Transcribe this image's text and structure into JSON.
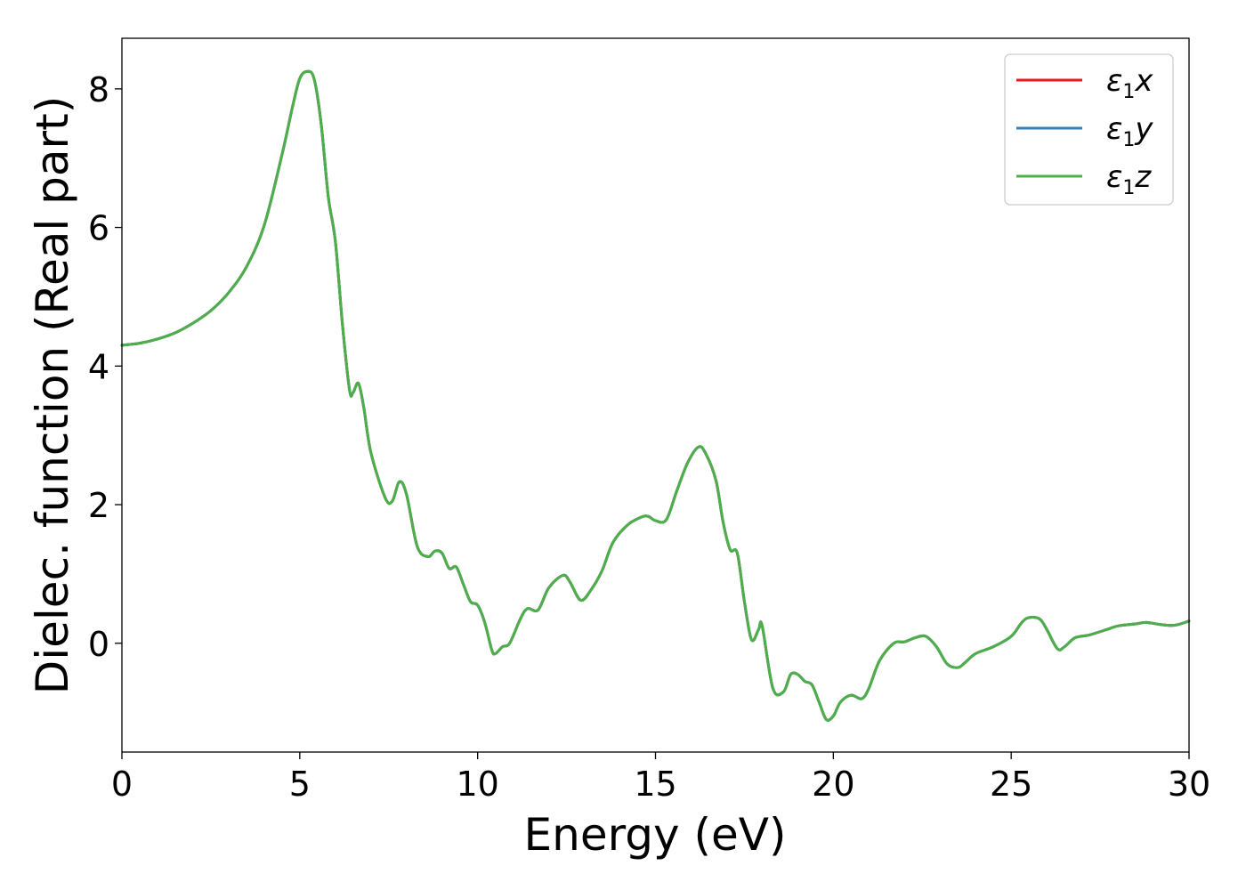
{
  "chart_data": {
    "type": "line",
    "xlabel": "Energy (eV)",
    "ylabel": "Dielec. function (Real part)",
    "xlim": [
      0,
      30
    ],
    "ylim": [
      -1.57,
      8.73
    ],
    "x_ticks": [
      0,
      5,
      10,
      15,
      20,
      25,
      30
    ],
    "y_ticks": [
      0,
      2,
      4,
      6,
      8
    ],
    "x_tick_labels": [
      "0",
      "5",
      "10",
      "15",
      "20",
      "25",
      "30"
    ],
    "y_tick_labels": [
      "0",
      "2",
      "4",
      "6",
      "8"
    ],
    "grid": false,
    "legend_position": "top-right",
    "series": [
      {
        "name": "ε1x",
        "legend": {
          "base": "ε",
          "sub": "1",
          "suffix": "x"
        },
        "color": "#e41a1c",
        "x": [
          0,
          0.5,
          1,
          1.5,
          2,
          2.5,
          3,
          3.5,
          4,
          4.5,
          4.8,
          5.0,
          5.2,
          5.4,
          5.6,
          5.8,
          6.0,
          6.2,
          6.4,
          6.5,
          6.65,
          6.8,
          7.0,
          7.4,
          7.6,
          7.8,
          8.0,
          8.3,
          8.6,
          8.8,
          9.0,
          9.2,
          9.4,
          9.6,
          9.8,
          10.0,
          10.2,
          10.4,
          10.5,
          10.7,
          10.9,
          11.2,
          11.4,
          11.7,
          12.0,
          12.4,
          12.6,
          12.9,
          13.2,
          13.5,
          13.8,
          14.2,
          14.6,
          14.8,
          15.0,
          15.3,
          15.6,
          15.9,
          16.2,
          16.4,
          16.7,
          16.9,
          17.1,
          17.3,
          17.5,
          17.7,
          17.9,
          18.0,
          18.3,
          18.6,
          18.8,
          19.0,
          19.2,
          19.4,
          19.6,
          19.8,
          20.0,
          20.2,
          20.5,
          20.8,
          21.0,
          21.3,
          21.7,
          22.0,
          22.3,
          22.6,
          22.9,
          23.2,
          23.5,
          23.7,
          24.0,
          24.5,
          25.0,
          25.3,
          25.5,
          25.8,
          26.0,
          26.3,
          26.5,
          26.8,
          27.2,
          27.7,
          28.0,
          28.5,
          28.8,
          29.2,
          29.6,
          30.0
        ],
        "values": [
          4.3,
          4.33,
          4.39,
          4.48,
          4.62,
          4.8,
          5.06,
          5.43,
          6.03,
          7.05,
          7.75,
          8.15,
          8.25,
          8.15,
          7.5,
          6.45,
          5.8,
          4.6,
          3.65,
          3.62,
          3.75,
          3.4,
          2.75,
          2.1,
          2.05,
          2.33,
          2.15,
          1.4,
          1.25,
          1.33,
          1.3,
          1.08,
          1.1,
          0.85,
          0.6,
          0.55,
          0.3,
          -0.1,
          -0.15,
          -0.05,
          0.0,
          0.35,
          0.5,
          0.48,
          0.8,
          0.98,
          0.88,
          0.62,
          0.78,
          1.05,
          1.45,
          1.7,
          1.82,
          1.83,
          1.77,
          1.78,
          2.2,
          2.6,
          2.83,
          2.75,
          2.35,
          1.75,
          1.35,
          1.3,
          0.6,
          0.05,
          0.2,
          0.25,
          -0.65,
          -0.7,
          -0.45,
          -0.45,
          -0.55,
          -0.6,
          -0.85,
          -1.1,
          -1.05,
          -0.85,
          -0.75,
          -0.8,
          -0.65,
          -0.25,
          0.0,
          0.02,
          0.08,
          0.1,
          -0.05,
          -0.3,
          -0.35,
          -0.28,
          -0.15,
          -0.05,
          0.1,
          0.3,
          0.37,
          0.35,
          0.2,
          -0.08,
          -0.05,
          0.08,
          0.12,
          0.2,
          0.25,
          0.28,
          0.3,
          0.27,
          0.26,
          0.32
        ]
      },
      {
        "name": "ε1y",
        "legend": {
          "base": "ε",
          "sub": "1",
          "suffix": "y"
        },
        "color": "#377eb8",
        "same_as": 0
      },
      {
        "name": "ε1z",
        "legend": {
          "base": "ε",
          "sub": "1",
          "suffix": "z"
        },
        "color": "#4daf4a",
        "same_as": 0
      }
    ]
  }
}
